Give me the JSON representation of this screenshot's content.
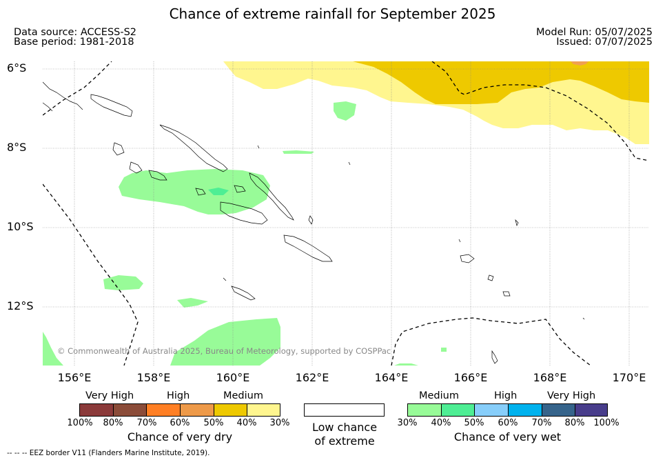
{
  "title": "Chance of extreme rainfall for September 2025",
  "meta": {
    "data_source": "Data source: ACCESS-S2",
    "base_period": "Base period: 1981-2018",
    "model_run": "Model Run: 05/07/2025",
    "issued": "Issued: 07/07/2025"
  },
  "map": {
    "lat_labels": [
      "6°S",
      "8°S",
      "10°S",
      "12°S"
    ],
    "lon_labels": [
      "156°E",
      "158°E",
      "160°E",
      "162°E",
      "164°E",
      "166°E",
      "168°E",
      "170°E"
    ],
    "copyright": "© Commonwealth of Australia 2025, Bureau of Meteorology, supported by COSPPac",
    "colors": {
      "medium_dry": "#fff68f",
      "high_dry": "#eec900",
      "very_high_dry_spot": "#f0a050",
      "medium_wet": "#98fb98",
      "high_wet": "#4eee94",
      "coast": "#000000",
      "eez": "#000000"
    }
  },
  "legend": {
    "dry": {
      "groups": [
        "Very High",
        "High",
        "Medium"
      ],
      "ticks": [
        "100%",
        "80%",
        "70%",
        "60%",
        "50%",
        "40%",
        "30%"
      ],
      "colors": [
        "#8b3a3a",
        "#8b4c39",
        "#ff7f24",
        "#ee9a49",
        "#eec900",
        "#fff68f"
      ],
      "caption": "Chance of very dry"
    },
    "neutral": {
      "caption_line1": "Low chance",
      "caption_line2": "of extreme",
      "color": "#ffffff"
    },
    "wet": {
      "groups": [
        "Medium",
        "High",
        "Very High"
      ],
      "ticks": [
        "30%",
        "40%",
        "50%",
        "60%",
        "70%",
        "80%",
        "100%"
      ],
      "colors": [
        "#98fb98",
        "#4eee94",
        "#87cefa",
        "#00b2ee",
        "#36648b",
        "#483d8b"
      ],
      "caption": "Chance of very wet"
    }
  },
  "footnote": "--  --  -- EEZ border V11 (Flanders Marine Institute, 2019)."
}
